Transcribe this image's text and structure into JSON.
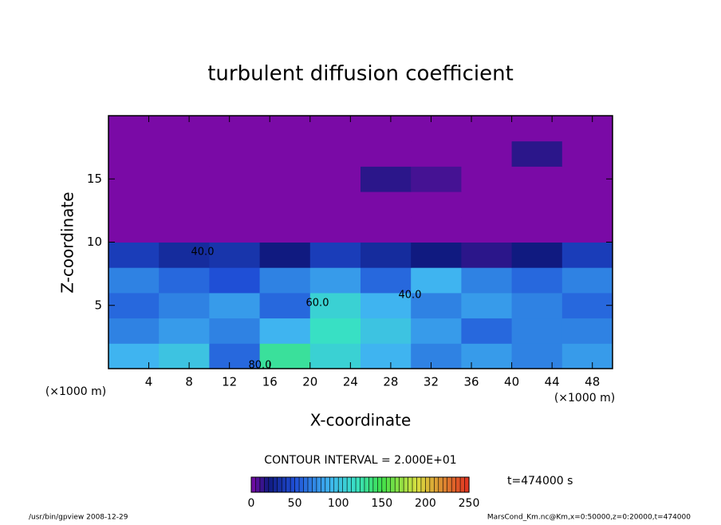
{
  "chart_data": {
    "type": "heatmap",
    "title": "turbulent diffusion coefficient",
    "x_label": "X-coordinate",
    "y_label": "Z-coordinate",
    "x_unit": "(×1000 m)",
    "y_unit": "(×1000 m)",
    "x": [
      2.5,
      7.5,
      12.5,
      17.5,
      22.5,
      27.5,
      32.5,
      37.5,
      42.5,
      47.5
    ],
    "y": [
      1,
      3,
      5,
      7,
      9,
      11,
      13,
      15,
      17,
      19
    ],
    "values": [
      [
        90,
        100,
        60,
        130,
        110,
        90,
        70,
        80,
        70,
        80
      ],
      [
        70,
        80,
        70,
        90,
        120,
        100,
        80,
        60,
        70,
        70
      ],
      [
        60,
        70,
        80,
        60,
        110,
        90,
        70,
        80,
        70,
        60
      ],
      [
        70,
        60,
        50,
        70,
        80,
        60,
        90,
        70,
        60,
        70
      ],
      [
        40,
        30,
        35,
        20,
        40,
        30,
        20,
        15,
        20,
        40
      ],
      [
        0,
        0,
        0,
        0,
        0,
        0,
        0,
        0,
        0,
        0
      ],
      [
        0,
        0,
        0,
        0,
        0,
        0,
        0,
        0,
        0,
        0
      ],
      [
        0,
        0,
        0,
        0,
        0,
        15,
        10,
        0,
        0,
        0
      ],
      [
        0,
        0,
        0,
        0,
        0,
        0,
        0,
        0,
        15,
        0
      ],
      [
        0,
        0,
        0,
        0,
        0,
        0,
        0,
        0,
        0,
        0
      ]
    ],
    "xlim": [
      0,
      50
    ],
    "ylim": [
      0,
      20
    ],
    "xticks": [
      4,
      8,
      12,
      16,
      20,
      24,
      28,
      32,
      36,
      40,
      44,
      48
    ],
    "yticks": [
      5,
      10,
      15
    ],
    "clim": [
      0,
      250
    ],
    "colorbar_ticks": [
      0,
      50,
      100,
      150,
      200,
      250
    ],
    "colormap": [
      {
        "value": 0,
        "color": "#7a0aa6"
      },
      {
        "value": 20,
        "color": "#101a80"
      },
      {
        "value": 50,
        "color": "#1f4fd6"
      },
      {
        "value": 90,
        "color": "#3fb4f0"
      },
      {
        "value": 120,
        "color": "#38e0c4"
      },
      {
        "value": 150,
        "color": "#3fe04a"
      },
      {
        "value": 190,
        "color": "#d8e040"
      },
      {
        "value": 250,
        "color": "#e03020"
      }
    ],
    "contour_labels": [
      "40.0",
      "40.0",
      "60.0",
      "80.0"
    ],
    "contour_interval": "CONTOUR INTERVAL = 2.000E+01",
    "time_label": "t=474000 s",
    "footer_left": "/usr/bin/gpview  2008-12-29",
    "footer_right": "MarsCond_Km.nc@Km,x=0:50000,z=0:20000,t=474000"
  }
}
